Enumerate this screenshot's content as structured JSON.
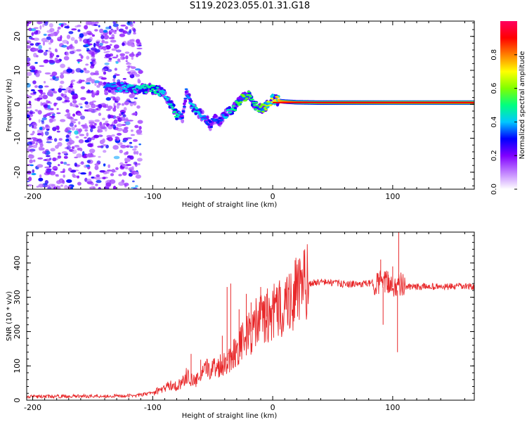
{
  "title": "S119.2023.055.01.31.G18",
  "chart_data": [
    {
      "type": "heatmap",
      "xlabel": "Height of straight line (km)",
      "ylabel": "Frequency (Hz)",
      "xlim": [
        -205,
        168
      ],
      "ylim": [
        -25,
        24.5
      ],
      "x_ticks": [
        -200,
        -100,
        0,
        100
      ],
      "y_ticks": [
        -20,
        -10,
        0,
        10,
        20
      ],
      "colorbar": {
        "label": "Normalized spectral amplitude",
        "range": [
          0,
          1
        ],
        "ticks": [
          "0.0",
          "0.2",
          "0.4",
          "0.6",
          "0.8"
        ],
        "tick_values": [
          0,
          0.2,
          0.4,
          0.6,
          0.8
        ],
        "colormap": [
          "#ffffff",
          "#c080ff",
          "#8000ff",
          "#0000ff",
          "#00c8ff",
          "#00ff80",
          "#80ff00",
          "#ffff00",
          "#ff8000",
          "#ff0000",
          "#ff0060"
        ]
      },
      "ridge": {
        "x": [
          -140,
          -125,
          -110,
          -100,
          -95,
          -90,
          -85,
          -80,
          -75,
          -72,
          -68,
          -64,
          -60,
          -56,
          -52,
          -48,
          -44,
          -40,
          -36,
          -32,
          -28,
          -24,
          -20,
          -16,
          -12,
          -8,
          -4,
          0,
          5,
          10,
          20,
          40,
          60,
          80,
          100,
          120,
          140,
          168
        ],
        "freq": [
          5,
          5,
          4.5,
          4.5,
          4,
          3,
          0,
          -3,
          -4,
          4,
          0,
          -2,
          -3,
          -4,
          -6,
          -4,
          -5,
          -3,
          -2,
          -1,
          1,
          2,
          3,
          0,
          -1,
          -1,
          0,
          1.5,
          1,
          0.8,
          0.6,
          0.5,
          0.5,
          0.5,
          0.5,
          0.5,
          0.5,
          0.5
        ],
        "amplitude": [
          0.35,
          0.4,
          0.45,
          0.5,
          0.45,
          0.4,
          0.45,
          0.5,
          0.3,
          0.35,
          0.4,
          0.45,
          0.4,
          0.35,
          0.3,
          0.35,
          0.3,
          0.4,
          0.45,
          0.5,
          0.55,
          0.6,
          0.55,
          0.5,
          0.55,
          0.6,
          0.65,
          0.7,
          0.75,
          0.8,
          0.85,
          0.85,
          0.9,
          0.92,
          0.95,
          0.95,
          0.95,
          0.95
        ]
      },
      "noise_region_x": [
        -205,
        -110
      ]
    },
    {
      "type": "line",
      "xlabel": "Height of straight line (km)",
      "ylabel": "SNR (10 * v/v)",
      "xlim": [
        -205,
        168
      ],
      "ylim": [
        0,
        490
      ],
      "x_ticks": [
        -200,
        -100,
        0,
        100
      ],
      "y_ticks": [
        0,
        100,
        200,
        300,
        400
      ],
      "series": [
        {
          "color": "#e8282a",
          "x": [
            -205,
            -180,
            -160,
            -140,
            -120,
            -110,
            -100,
            -95,
            -90,
            -85,
            -80,
            -75,
            -72,
            -68,
            -64,
            -60,
            -55,
            -50,
            -45,
            -40,
            -36,
            -32,
            -28,
            -24,
            -20,
            -16,
            -12,
            -8,
            -4,
            0,
            5,
            10,
            15,
            20,
            25,
            30,
            40,
            50,
            60,
            70,
            80,
            85,
            90,
            92,
            94,
            96,
            98,
            100,
            102,
            104,
            105,
            106,
            108,
            110,
            120,
            130,
            140,
            150,
            168
          ],
          "y": [
            10,
            11,
            12,
            12,
            13,
            15,
            22,
            28,
            35,
            45,
            40,
            55,
            70,
            60,
            55,
            70,
            90,
            95,
            100,
            110,
            120,
            140,
            160,
            175,
            190,
            210,
            230,
            240,
            245,
            250,
            265,
            280,
            295,
            315,
            330,
            340,
            345,
            342,
            338,
            338,
            340,
            342,
            345,
            330,
            350,
            335,
            345,
            330,
            340,
            320,
            335,
            340,
            335,
            330,
            330,
            332,
            330,
            331,
            332
          ]
        }
      ],
      "spikes": [
        {
          "x": -68,
          "y": 135
        },
        {
          "x": -60,
          "y": 118
        },
        {
          "x": -42,
          "y": 188
        },
        {
          "x": -38,
          "y": 330
        },
        {
          "x": -35,
          "y": 340
        },
        {
          "x": -28,
          "y": 265
        },
        {
          "x": -22,
          "y": 310
        },
        {
          "x": -18,
          "y": 285
        },
        {
          "x": -10,
          "y": 330
        },
        {
          "x": -5,
          "y": 310
        },
        {
          "x": 10,
          "y": 325
        },
        {
          "x": 90,
          "y": 410
        },
        {
          "x": 92,
          "y": 220
        },
        {
          "x": 96,
          "y": 375
        },
        {
          "x": 100,
          "y": 390
        },
        {
          "x": 104,
          "y": 140
        },
        {
          "x": 105,
          "y": 490
        }
      ]
    }
  ]
}
